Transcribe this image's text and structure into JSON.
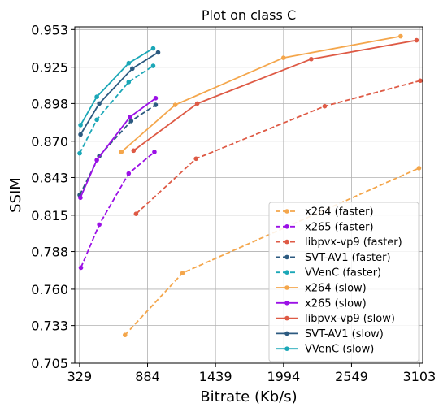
{
  "chart_data": {
    "type": "line",
    "title": "Plot on class C",
    "xlabel": "Bitrate (Kb/s)",
    "ylabel": "SSIM",
    "xlim": [
      290,
      3130
    ],
    "ylim": [
      0.705,
      0.955
    ],
    "xticks": [
      329,
      884,
      1439,
      1994,
      2549,
      3103
    ],
    "yticks": [
      0.705,
      0.733,
      0.76,
      0.788,
      0.815,
      0.843,
      0.87,
      0.898,
      0.925,
      0.953
    ],
    "xtick_labels": [
      "329",
      "884",
      "1439",
      "1994",
      "2549",
      "3103"
    ],
    "ytick_labels": [
      "0.705",
      "0.733",
      "0.760",
      "0.788",
      "0.815",
      "0.843",
      "0.870",
      "0.898",
      "0.925",
      "0.953"
    ],
    "grid": true,
    "legend_position": "lower-right",
    "series": [
      {
        "name": "x264 (faster)",
        "color": "#f4a64b",
        "dashed": true,
        "x": [
          700,
          1170,
          3100
        ],
        "y": [
          0.726,
          0.772,
          0.85
        ]
      },
      {
        "name": "x265 (faster)",
        "color": "#9b10e6",
        "dashed": true,
        "x": [
          340,
          490,
          730,
          940
        ],
        "y": [
          0.776,
          0.808,
          0.846,
          0.862
        ]
      },
      {
        "name": "libpvx-vp9 (faster)",
        "color": "#de5a45",
        "dashed": true,
        "x": [
          790,
          1280,
          2330,
          3110
        ],
        "y": [
          0.816,
          0.857,
          0.896,
          0.915
        ]
      },
      {
        "name": "SVT-AV1 (faster)",
        "color": "#2c5a80",
        "dashed": true,
        "x": [
          330,
          490,
          750,
          950
        ],
        "y": [
          0.83,
          0.859,
          0.885,
          0.897
        ]
      },
      {
        "name": "VVenC (faster)",
        "color": "#1ba7b7",
        "dashed": true,
        "x": [
          330,
          470,
          730,
          930
        ],
        "y": [
          0.861,
          0.886,
          0.914,
          0.926
        ]
      },
      {
        "name": "x264 (slow)",
        "color": "#f4a64b",
        "dashed": false,
        "x": [
          670,
          1110,
          1994,
          2950
        ],
        "y": [
          0.862,
          0.897,
          0.932,
          0.948
        ]
      },
      {
        "name": "x265 (slow)",
        "color": "#9b10e6",
        "dashed": false,
        "x": [
          336,
          470,
          740,
          950
        ],
        "y": [
          0.828,
          0.856,
          0.888,
          0.902
        ]
      },
      {
        "name": "libpvx-vp9 (slow)",
        "color": "#de5a45",
        "dashed": false,
        "x": [
          770,
          1290,
          2220,
          3080
        ],
        "y": [
          0.863,
          0.898,
          0.931,
          0.945
        ]
      },
      {
        "name": "SVT-AV1 (slow)",
        "color": "#2c5a80",
        "dashed": false,
        "x": [
          337,
          490,
          760,
          970
        ],
        "y": [
          0.875,
          0.898,
          0.924,
          0.936
        ]
      },
      {
        "name": "VVenC (slow)",
        "color": "#1ba7b7",
        "dashed": false,
        "x": [
          337,
          470,
          730,
          930
        ],
        "y": [
          0.882,
          0.903,
          0.928,
          0.939
        ]
      }
    ]
  }
}
